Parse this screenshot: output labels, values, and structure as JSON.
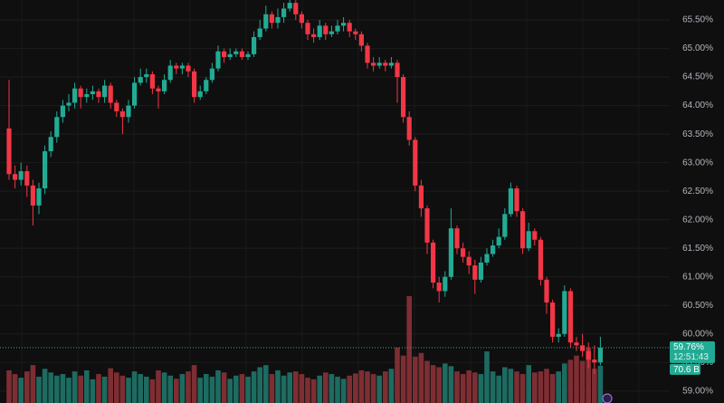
{
  "chart_data": {
    "type": "candlestick",
    "open": [
      63.6,
      62.8,
      62.7,
      62.85,
      62.6,
      62.25,
      62.55,
      63.2,
      63.45,
      63.8,
      64.0,
      64.05,
      64.3,
      64.15,
      64.2,
      64.25,
      64.15,
      64.35,
      64.05,
      63.9,
      63.8,
      64.0,
      64.4,
      64.5,
      64.55,
      64.3,
      64.25,
      64.45,
      64.7,
      64.65,
      64.7,
      64.6,
      64.15,
      64.25,
      64.45,
      64.65,
      64.95,
      64.85,
      64.9,
      64.95,
      64.85,
      64.9,
      65.2,
      65.35,
      65.6,
      65.45,
      65.55,
      65.7,
      65.8,
      65.6,
      65.45,
      65.25,
      65.2,
      65.4,
      65.25,
      65.3,
      65.4,
      65.45,
      65.3,
      65.25,
      65.05,
      64.75,
      64.7,
      64.75,
      64.7,
      64.75,
      64.5,
      63.8,
      63.4,
      62.6,
      62.2,
      61.6,
      60.9,
      60.75,
      61.0,
      61.85,
      61.5,
      61.35,
      61.2,
      60.95,
      61.25,
      61.4,
      61.55,
      61.7,
      62.1,
      62.55,
      62.15,
      61.5,
      61.8,
      61.65,
      60.95,
      60.55,
      59.95,
      60.0,
      60.75,
      59.85,
      59.8,
      59.7,
      59.55,
      59.5
    ],
    "high": [
      64.45,
      62.95,
      63.0,
      62.95,
      62.7,
      62.65,
      63.3,
      63.55,
      63.9,
      64.1,
      64.2,
      64.4,
      64.35,
      64.3,
      64.35,
      64.3,
      64.45,
      64.4,
      64.1,
      63.95,
      64.1,
      64.5,
      64.65,
      64.65,
      64.6,
      64.35,
      64.55,
      64.8,
      64.75,
      64.75,
      64.75,
      64.65,
      64.35,
      64.5,
      64.75,
      65.05,
      65.0,
      65.0,
      65.0,
      65.0,
      64.95,
      65.3,
      65.5,
      65.75,
      65.65,
      65.7,
      65.8,
      65.85,
      65.85,
      65.65,
      65.5,
      65.35,
      65.5,
      65.45,
      65.4,
      65.5,
      65.55,
      65.5,
      65.35,
      65.3,
      65.1,
      64.85,
      64.85,
      64.8,
      64.85,
      64.8,
      64.55,
      63.9,
      63.45,
      62.7,
      62.25,
      61.65,
      61.0,
      61.1,
      62.2,
      61.9,
      61.6,
      61.45,
      61.3,
      61.35,
      61.5,
      61.65,
      61.85,
      62.2,
      62.65,
      62.6,
      62.2,
      61.95,
      61.85,
      61.7,
      61.0,
      60.6,
      60.1,
      60.85,
      60.8,
      59.95,
      60.0,
      59.85,
      59.8,
      59.95
    ],
    "low": [
      62.7,
      62.55,
      62.6,
      62.4,
      61.9,
      62.1,
      62.45,
      63.1,
      63.35,
      63.7,
      63.9,
      63.95,
      63.95,
      64.05,
      64.1,
      64.05,
      64.05,
      63.95,
      63.8,
      63.5,
      63.7,
      63.95,
      64.35,
      64.4,
      64.2,
      63.95,
      64.2,
      64.4,
      64.55,
      64.55,
      64.5,
      64.05,
      64.1,
      64.2,
      64.4,
      64.6,
      64.75,
      64.8,
      64.85,
      64.8,
      64.8,
      64.85,
      65.15,
      65.3,
      65.35,
      65.35,
      65.45,
      65.65,
      65.5,
      65.35,
      65.15,
      65.1,
      65.15,
      65.15,
      65.2,
      65.25,
      65.3,
      65.2,
      65.15,
      64.95,
      64.65,
      64.6,
      64.65,
      64.6,
      64.65,
      64.05,
      63.7,
      63.3,
      62.5,
      62.05,
      61.4,
      60.8,
      60.55,
      60.65,
      60.95,
      61.4,
      61.25,
      61.05,
      60.7,
      60.9,
      61.2,
      61.35,
      61.5,
      61.65,
      62.05,
      62.05,
      61.4,
      61.45,
      61.55,
      60.85,
      60.35,
      59.85,
      59.85,
      59.95,
      59.75,
      59.7,
      59.6,
      59.4,
      59.3,
      59.45
    ],
    "close": [
      62.8,
      62.7,
      62.85,
      62.6,
      62.25,
      62.55,
      63.2,
      63.45,
      63.8,
      64.0,
      64.05,
      64.3,
      64.15,
      64.2,
      64.25,
      64.15,
      64.35,
      64.05,
      63.9,
      63.8,
      64.0,
      64.4,
      64.5,
      64.55,
      64.3,
      64.25,
      64.45,
      64.7,
      64.65,
      64.7,
      64.6,
      64.15,
      64.25,
      64.45,
      64.65,
      64.95,
      64.85,
      64.9,
      64.95,
      64.85,
      64.9,
      65.2,
      65.35,
      65.6,
      65.45,
      65.55,
      65.7,
      65.8,
      65.6,
      65.45,
      65.25,
      65.2,
      65.4,
      65.25,
      65.3,
      65.4,
      65.45,
      65.3,
      65.25,
      65.05,
      64.75,
      64.7,
      64.75,
      64.7,
      64.75,
      64.5,
      63.8,
      63.4,
      62.6,
      62.2,
      61.6,
      60.9,
      60.75,
      61.0,
      61.85,
      61.5,
      61.35,
      61.2,
      60.95,
      61.25,
      61.4,
      61.55,
      61.7,
      62.1,
      62.55,
      62.15,
      61.5,
      61.8,
      61.65,
      60.95,
      60.55,
      59.95,
      60.0,
      60.75,
      59.85,
      59.8,
      59.7,
      59.55,
      59.5,
      59.76
    ],
    "volume": [
      62,
      55,
      48,
      60,
      72,
      50,
      65,
      58,
      52,
      55,
      48,
      60,
      52,
      62,
      45,
      55,
      50,
      66,
      58,
      52,
      48,
      60,
      55,
      50,
      45,
      62,
      58,
      52,
      46,
      55,
      60,
      72,
      48,
      55,
      50,
      62,
      58,
      46,
      52,
      55,
      50,
      60,
      68,
      72,
      55,
      62,
      52,
      58,
      60,
      55,
      48,
      45,
      52,
      58,
      55,
      50,
      46,
      52,
      56,
      62,
      60,
      55,
      52,
      60,
      65,
      105,
      90,
      203,
      88,
      95,
      80,
      72,
      68,
      75,
      70,
      60,
      55,
      62,
      58,
      55,
      98,
      60,
      52,
      68,
      65,
      60,
      55,
      72,
      58,
      60,
      65,
      55,
      60,
      75,
      82,
      90,
      80,
      105,
      65,
      70.6
    ],
    "up_color": "#22ab94",
    "down_color": "#f23645",
    "up_volume_color": "#1d6b61",
    "down_volume_color": "#7e2e33",
    "ylim": [
      58.79,
      65.85
    ],
    "yticks": [
      {
        "value": 59.0,
        "label": "59.00%"
      },
      {
        "value": 59.5,
        "label": "59.50%"
      },
      {
        "value": 60.0,
        "label": "60.00%"
      },
      {
        "value": 60.5,
        "label": "60.50%"
      },
      {
        "value": 61.0,
        "label": "61.00%"
      },
      {
        "value": 61.5,
        "label": "61.50%"
      },
      {
        "value": 62.0,
        "label": "62.00%"
      },
      {
        "value": 62.5,
        "label": "62.50%"
      },
      {
        "value": 63.0,
        "label": "63.00%"
      },
      {
        "value": 63.5,
        "label": "63.50%"
      },
      {
        "value": 64.0,
        "label": "64.00%"
      },
      {
        "value": 64.5,
        "label": "64.50%"
      },
      {
        "value": 65.0,
        "label": "65.00%"
      },
      {
        "value": 65.5,
        "label": "65.50%"
      }
    ],
    "grid": true,
    "last_price_label": "59.76%",
    "countdown": "12:51:43",
    "last_volume_label": "70.6 B"
  }
}
